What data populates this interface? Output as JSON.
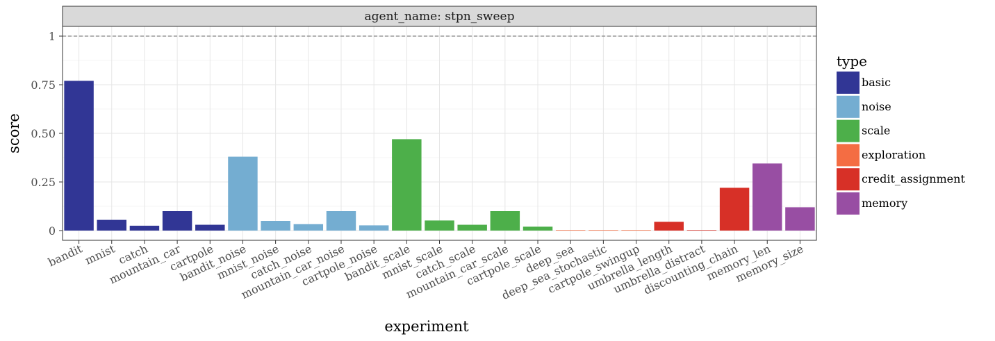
{
  "chart_data": {
    "type": "bar",
    "facet_label": "agent_name: stpn_sweep",
    "xlabel": "experiment",
    "ylabel": "score",
    "ylim": [
      -0.05,
      1.05
    ],
    "yticks": [
      0,
      0.25,
      0.5,
      0.75,
      1
    ],
    "ytick_labels": [
      "0",
      "0.25",
      "0.50",
      "0.75",
      "1"
    ],
    "reference_line": 1,
    "grid": true,
    "legend_position": "right",
    "legend_title": "type",
    "types": [
      {
        "name": "basic",
        "color": "#313695"
      },
      {
        "name": "noise",
        "color": "#74add1"
      },
      {
        "name": "scale",
        "color": "#4daf4a"
      },
      {
        "name": "exploration",
        "color": "#f46d43"
      },
      {
        "name": "credit_assignment",
        "color": "#d73027"
      },
      {
        "name": "memory",
        "color": "#984ea3"
      }
    ],
    "categories": [
      "bandit",
      "mnist",
      "catch",
      "mountain_car",
      "cartpole",
      "bandit_noise",
      "mnist_noise",
      "catch_noise",
      "mountain_car_noise",
      "cartpole_noise",
      "bandit_scale",
      "mnist_scale",
      "catch_scale",
      "mountain_car_scale",
      "cartpole_scale",
      "deep_sea",
      "deep_sea_stochastic",
      "cartpole_swingup",
      "umbrella_length",
      "umbrella_distract",
      "discounting_chain",
      "memory_len",
      "memory_size"
    ],
    "values": [
      0.77,
      0.055,
      0.025,
      0.1,
      0.03,
      0.38,
      0.05,
      0.033,
      0.1,
      0.027,
      0.47,
      0.052,
      0.03,
      0.1,
      0.02,
      0.002,
      0.002,
      0.002,
      0.045,
      0.002,
      0.22,
      0.345,
      0.12
    ],
    "bar_types": [
      "basic",
      "basic",
      "basic",
      "basic",
      "basic",
      "noise",
      "noise",
      "noise",
      "noise",
      "noise",
      "scale",
      "scale",
      "scale",
      "scale",
      "scale",
      "exploration",
      "exploration",
      "exploration",
      "credit_assignment",
      "credit_assignment",
      "credit_assignment",
      "memory",
      "memory"
    ]
  }
}
